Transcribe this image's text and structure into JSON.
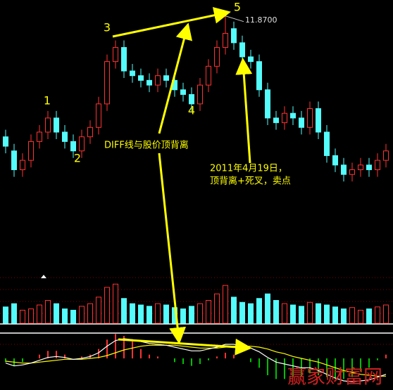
{
  "chart_data": {
    "type": "candlestick",
    "open": [
      9.3,
      9.0,
      8.6,
      8.8,
      9.2,
      9.4,
      9.7,
      9.4,
      9.2,
      9.0,
      9.3,
      9.5,
      10.0,
      10.9,
      11.2,
      10.7,
      10.6,
      10.5,
      10.4,
      10.6,
      10.5,
      10.3,
      10.2,
      10.0,
      10.4,
      10.8,
      11.2,
      11.6,
      11.3,
      11.0,
      10.9,
      10.3,
      9.7,
      9.6,
      9.8,
      9.7,
      9.5,
      9.9,
      9.4,
      8.9,
      8.7,
      8.5,
      8.6,
      8.7,
      8.6,
      8.8
    ],
    "close": [
      9.1,
      8.6,
      8.8,
      9.2,
      9.4,
      9.7,
      9.4,
      9.2,
      9.0,
      9.3,
      9.5,
      10.0,
      10.9,
      11.2,
      10.7,
      10.6,
      10.5,
      10.4,
      10.6,
      10.5,
      10.3,
      10.2,
      10.0,
      10.4,
      10.8,
      11.2,
      11.5,
      11.3,
      11.0,
      10.9,
      10.3,
      9.7,
      9.6,
      9.8,
      9.7,
      9.5,
      9.9,
      9.4,
      8.9,
      8.7,
      8.5,
      8.6,
      8.7,
      8.6,
      8.8,
      9.0
    ],
    "high": [
      9.45,
      9.15,
      8.95,
      9.35,
      9.55,
      9.85,
      9.85,
      9.55,
      9.35,
      9.45,
      9.65,
      10.15,
      11.05,
      11.35,
      11.35,
      10.85,
      10.75,
      10.65,
      10.75,
      10.75,
      10.65,
      10.45,
      10.35,
      10.55,
      10.95,
      11.35,
      11.87,
      11.75,
      11.45,
      11.15,
      11.05,
      10.45,
      9.85,
      9.95,
      9.95,
      9.85,
      10.05,
      10.05,
      9.55,
      9.05,
      8.85,
      8.75,
      8.85,
      8.85,
      8.95,
      9.15
    ],
    "low": [
      8.95,
      8.45,
      8.45,
      8.65,
      9.05,
      9.25,
      9.25,
      9.05,
      8.85,
      8.85,
      9.15,
      9.35,
      9.85,
      10.75,
      10.55,
      10.45,
      10.35,
      10.25,
      10.25,
      10.35,
      10.15,
      10.05,
      9.85,
      9.85,
      10.25,
      10.65,
      11.05,
      11.15,
      10.85,
      10.75,
      10.15,
      9.55,
      9.45,
      9.45,
      9.55,
      9.35,
      9.35,
      9.25,
      8.75,
      8.55,
      8.35,
      8.35,
      8.45,
      8.45,
      8.45,
      8.65
    ],
    "ylim": [
      8.1,
      12.0
    ],
    "up_color": "#ff3232",
    "down_color": "#54fcfc",
    "peak": {
      "value": 11.87,
      "label": "11.8700"
    },
    "volume": [
      25,
      30,
      20,
      22,
      28,
      35,
      30,
      22,
      20,
      26,
      30,
      40,
      55,
      60,
      38,
      30,
      28,
      26,
      30,
      28,
      24,
      22,
      26,
      30,
      35,
      45,
      58,
      40,
      32,
      30,
      38,
      45,
      35,
      30,
      28,
      26,
      32,
      30,
      28,
      25,
      22,
      24,
      20,
      22,
      25,
      28
    ],
    "volume_ylim": [
      0,
      70
    ],
    "macd": {
      "ylim": [
        -0.3,
        0.3
      ],
      "diff": [
        -0.05,
        -0.08,
        -0.07,
        -0.05,
        -0.02,
        0.01,
        0.02,
        0.01,
        -0.01,
        0,
        0.02,
        0.06,
        0.13,
        0.19,
        0.21,
        0.2,
        0.18,
        0.16,
        0.15,
        0.14,
        0.12,
        0.1,
        0.08,
        0.08,
        0.1,
        0.12,
        0.15,
        0.15,
        0.13,
        0.11,
        0.07,
        0.01,
        -0.04,
        -0.06,
        -0.08,
        -0.1,
        -0.1,
        -0.13,
        -0.17,
        -0.21,
        -0.24,
        -0.25,
        -0.24,
        -0.23,
        -0.2,
        -0.17
      ],
      "dea": [
        -0.03,
        -0.04,
        -0.05,
        -0.05,
        -0.04,
        -0.03,
        -0.02,
        -0.01,
        -0.01,
        -0.01,
        0,
        0.01,
        0.03,
        0.06,
        0.09,
        0.11,
        0.13,
        0.14,
        0.14,
        0.14,
        0.14,
        0.13,
        0.12,
        0.11,
        0.11,
        0.11,
        0.12,
        0.13,
        0.13,
        0.13,
        0.12,
        0.1,
        0.07,
        0.05,
        0.02,
        0,
        -0.02,
        -0.04,
        -0.07,
        -0.1,
        -0.13,
        -0.15,
        -0.17,
        -0.18,
        -0.19,
        -0.19
      ],
      "hist": [
        -0.04,
        -0.08,
        -0.04,
        0,
        0.04,
        0.08,
        0.08,
        0.04,
        0,
        0.02,
        0.04,
        0.1,
        0.2,
        0.26,
        0.24,
        0.18,
        0.1,
        0.04,
        0.02,
        0,
        -0.04,
        -0.06,
        -0.08,
        -0.06,
        -0.02,
        0.02,
        0.06,
        0.04,
        0,
        -0.04,
        -0.1,
        -0.18,
        -0.22,
        -0.22,
        -0.2,
        -0.2,
        -0.16,
        -0.18,
        -0.2,
        -0.22,
        -0.22,
        -0.2,
        -0.14,
        -0.1,
        -0.02,
        0.04
      ],
      "diff_color": "#ffffff",
      "dea_color": "#ffff00",
      "hist_up_color": "#ff3232",
      "hist_down_color": "#00c000"
    },
    "points": [
      "1",
      "2",
      "3",
      "4",
      "5"
    ],
    "annotation_1": "DIFF线与股价顶背离",
    "annotation_2": [
      "2011年4月19日，",
      "顶背离+死叉，卖点"
    ],
    "watermark": "赢家财富网"
  }
}
